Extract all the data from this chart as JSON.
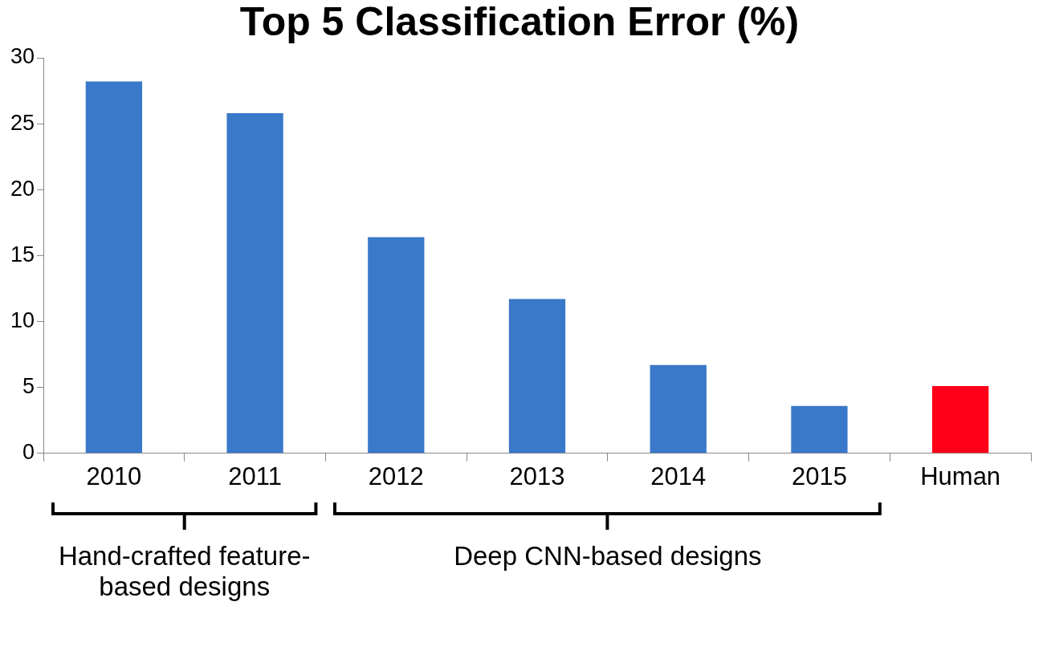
{
  "chart_data": {
    "type": "bar",
    "title": "Top 5 Classification Error (%)",
    "categories": [
      "2010",
      "2011",
      "2012",
      "2013",
      "2014",
      "2015",
      "Human"
    ],
    "values": [
      28.2,
      25.8,
      16.4,
      11.7,
      6.7,
      3.6,
      5.1
    ],
    "colors": [
      "#3a78c9",
      "#3a78c9",
      "#3a78c9",
      "#3a78c9",
      "#3a78c9",
      "#3a78c9",
      "#ff0018"
    ],
    "ylim": [
      0,
      30
    ],
    "yticks": [
      0,
      5,
      10,
      15,
      20,
      25,
      30
    ],
    "grid": false,
    "legend": false,
    "annotations": [
      "Hand-crafted feature-based designs",
      "Deep CNN-based designs"
    ]
  }
}
